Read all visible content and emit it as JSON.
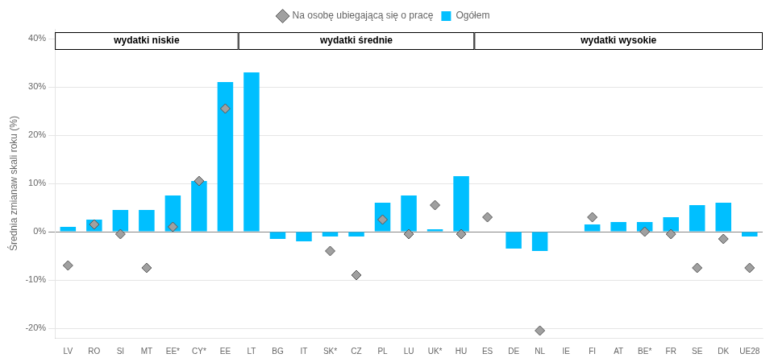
{
  "chart_data": {
    "type": "bar",
    "ylabel": "Średnia zmianaw skali roku (%)",
    "categories": [
      "LV",
      "RO",
      "SI",
      "MT",
      "EE*",
      "CY*",
      "EE",
      "LT",
      "BG",
      "IT",
      "SK*",
      "CZ",
      "PL",
      "LU",
      "UK*",
      "HU",
      "ES",
      "DE",
      "NL",
      "IE",
      "FI",
      "AT",
      "BE*",
      "FR",
      "SE",
      "DK",
      "UE28"
    ],
    "series": [
      {
        "name": "Ogółem",
        "type": "bar",
        "color": "#00BFFF",
        "values": [
          1.0,
          2.5,
          4.5,
          4.5,
          7.5,
          10.5,
          31.0,
          33.0,
          -1.5,
          -2.0,
          -1.0,
          -1.0,
          6.0,
          7.5,
          0.5,
          11.5,
          0.0,
          -3.5,
          -4.0,
          0.0,
          1.5,
          2.0,
          2.0,
          3.0,
          5.5,
          6.0,
          -1.0
        ]
      },
      {
        "name": "Na osobę ubiegającą się o pracę",
        "type": "scatter",
        "marker": "diamond",
        "color": "#A0A0A0",
        "values": [
          -7.0,
          1.5,
          -0.5,
          -7.5,
          1.0,
          10.5,
          25.5,
          null,
          null,
          null,
          -4.0,
          -9.0,
          2.5,
          -0.5,
          5.5,
          -0.5,
          3.0,
          null,
          -20.5,
          null,
          3.0,
          null,
          0.0,
          -0.5,
          -7.5,
          -1.5,
          -7.5
        ]
      }
    ],
    "annotations": [
      {
        "text": "wydatki niskie",
        "from": "LV",
        "to": "EE"
      },
      {
        "text": "wydatki średnie",
        "from": "LT",
        "to": "HU"
      },
      {
        "text": "wydatki wysokie",
        "from": "ES",
        "to": "UE28"
      }
    ],
    "ylim": [
      -22,
      42
    ],
    "yticks": [
      {
        "value": -20,
        "label": "-20%"
      },
      {
        "value": -10,
        "label": "-10%"
      },
      {
        "value": 0,
        "label": "0%"
      },
      {
        "value": 10,
        "label": "10%"
      },
      {
        "value": 20,
        "label": "20%"
      },
      {
        "value": 30,
        "label": "30%"
      },
      {
        "value": 40,
        "label": "40%"
      }
    ],
    "grid": true,
    "legend": "top"
  }
}
